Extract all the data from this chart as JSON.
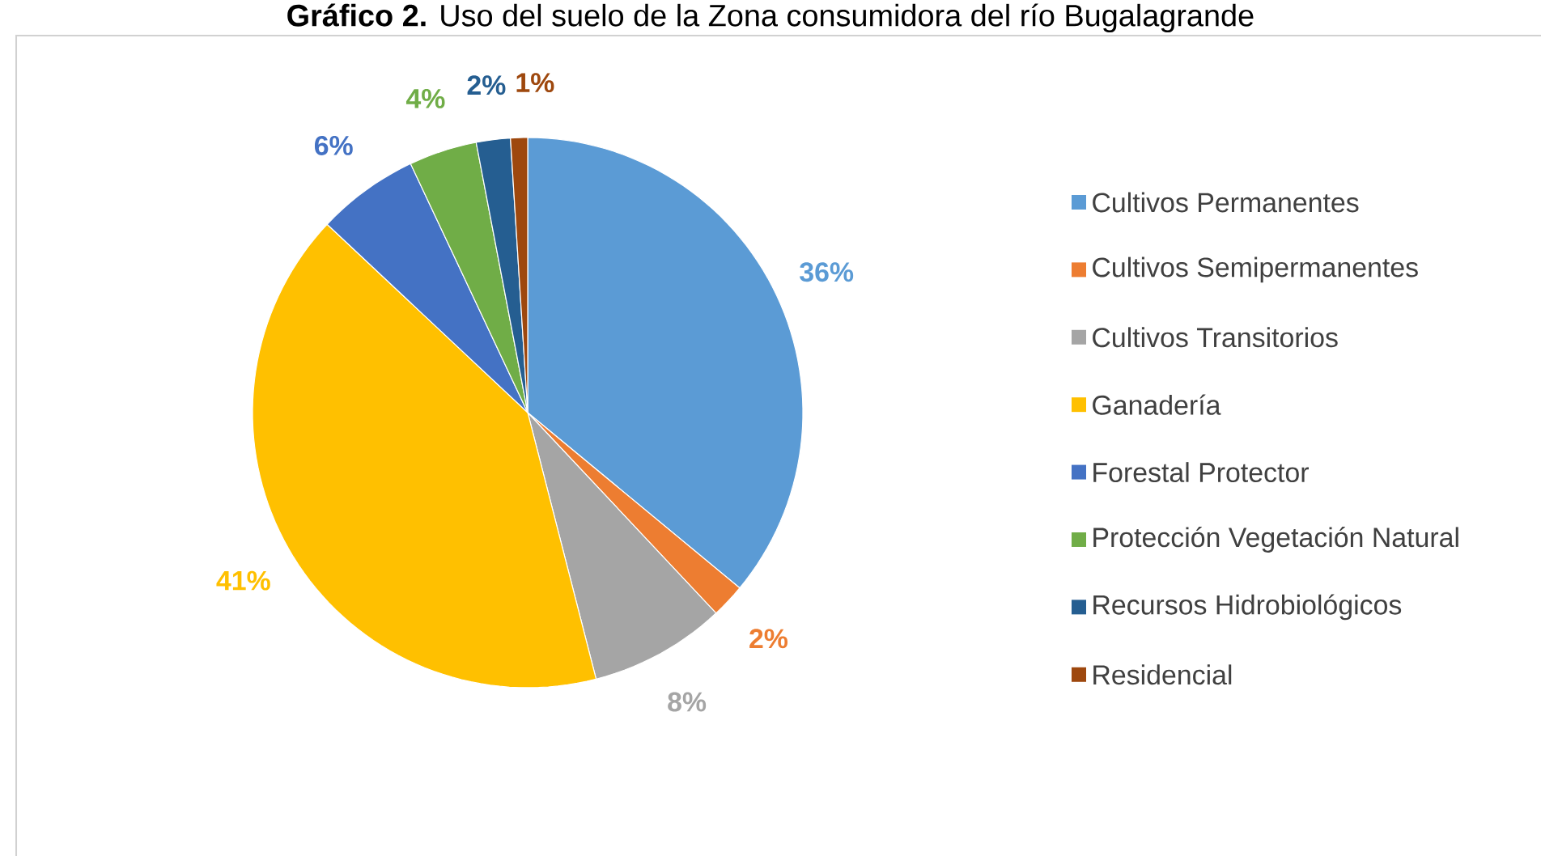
{
  "chart_data": {
    "type": "pie",
    "title": "**Gráfico 2.** Uso del suelo de la Zona consumidora del río Bugalagrande",
    "categories": [
      "Cultivos Permanentes",
      "Cultivos Semipermanentes",
      "Cultivos Transitorios",
      "Ganadería",
      "Forestal Protector",
      "Protección Vegetación Natural",
      "Recursos Hidrobiológicos",
      "Residencial"
    ],
    "values": [
      36,
      2,
      8,
      41,
      6,
      4,
      2,
      1
    ],
    "value_labels": [
      "36%",
      "2%",
      "8%",
      "41%",
      "6%",
      "4%",
      "2%",
      "1%"
    ],
    "colors": [
      "#5b9bd5",
      "#ed7d31",
      "#a5a5a5",
      "#ffc000",
      "#4472c4",
      "#70ad47",
      "#255e91",
      "#9e480e"
    ],
    "legend": "right"
  }
}
